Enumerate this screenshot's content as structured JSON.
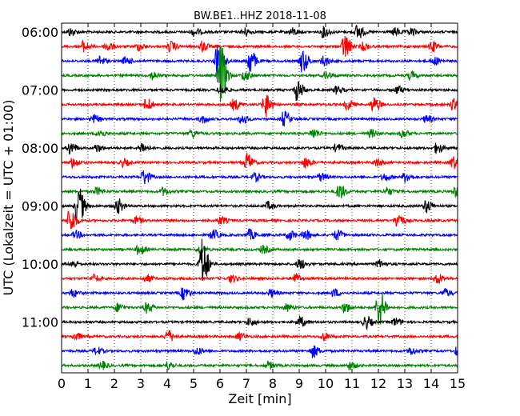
{
  "chart_data": {
    "type": "line",
    "title": "BW.BE1..HHZ 2018-11-08",
    "xlabel": "Zeit  [min]",
    "ylabel": "UTC (Lokalzeit = UTC + 01:00)",
    "xlim": [
      0,
      15
    ],
    "x_ticks": [
      "0",
      "1",
      "2",
      "3",
      "4",
      "5",
      "6",
      "7",
      "8",
      "9",
      "10",
      "11",
      "12",
      "13",
      "14",
      "15"
    ],
    "y_ticks": [
      "06:00",
      "07:00",
      "08:00",
      "09:00",
      "10:00",
      "11:00"
    ],
    "grid": "vertical dotted",
    "trace_colors": [
      "#000000",
      "#ff0000",
      "#0000ff",
      "#008000"
    ],
    "traces": [
      {
        "start": "06:00",
        "events": [
          [
            0.3,
            0.3
          ],
          [
            5.0,
            0.3
          ],
          [
            6.9,
            0.3
          ],
          [
            8.7,
            0.3
          ],
          [
            9.9,
            0.4
          ],
          [
            11.2,
            0.6
          ],
          [
            12.6,
            0.3
          ],
          [
            13.2,
            0.3
          ]
        ]
      },
      {
        "start": "06:15",
        "events": [
          [
            0.8,
            0.4
          ],
          [
            1.7,
            0.4
          ],
          [
            2.9,
            0.3
          ],
          [
            4.1,
            0.4
          ],
          [
            5.3,
            0.4
          ],
          [
            10.7,
            1.0
          ],
          [
            11.4,
            0.3
          ],
          [
            14.0,
            0.4
          ]
        ]
      },
      {
        "start": "06:30",
        "events": [
          [
            1.4,
            0.4
          ],
          [
            2.4,
            0.3
          ],
          [
            5.9,
            1.4
          ],
          [
            7.1,
            1.0
          ],
          [
            9.1,
            0.9
          ],
          [
            9.9,
            0.4
          ],
          [
            14.1,
            0.3
          ]
        ]
      },
      {
        "start": "06:45",
        "events": [
          [
            3.4,
            0.3
          ],
          [
            6.0,
            2.5
          ],
          [
            6.9,
            0.4
          ],
          [
            10.0,
            0.3
          ],
          [
            13.2,
            0.3
          ]
        ]
      },
      {
        "start": "07:00",
        "events": [
          [
            6.0,
            0.4
          ],
          [
            8.9,
            0.8
          ],
          [
            10.4,
            0.3
          ],
          [
            12.7,
            0.3
          ]
        ]
      },
      {
        "start": "07:15",
        "events": [
          [
            3.2,
            0.5
          ],
          [
            6.5,
            0.4
          ],
          [
            7.7,
            1.0
          ],
          [
            10.8,
            0.4
          ],
          [
            11.8,
            0.6
          ],
          [
            14.8,
            0.4
          ]
        ]
      },
      {
        "start": "07:30",
        "events": [
          [
            1.2,
            0.3
          ],
          [
            5.3,
            0.3
          ],
          [
            6.8,
            0.4
          ],
          [
            8.4,
            0.6
          ],
          [
            13.8,
            0.3
          ]
        ]
      },
      {
        "start": "07:45",
        "events": [
          [
            1.4,
            0.3
          ],
          [
            4.9,
            0.3
          ],
          [
            9.5,
            0.4
          ],
          [
            11.7,
            0.3
          ],
          [
            12.9,
            0.3
          ]
        ]
      },
      {
        "start": "08:00",
        "events": [
          [
            0.3,
            0.5
          ],
          [
            1.3,
            0.3
          ],
          [
            3.0,
            0.4
          ],
          [
            10.4,
            0.3
          ],
          [
            14.2,
            0.4
          ]
        ]
      },
      {
        "start": "08:15",
        "events": [
          [
            0.4,
            0.4
          ],
          [
            2.3,
            0.3
          ],
          [
            7.0,
            0.7
          ],
          [
            9.2,
            0.4
          ],
          [
            11.9,
            0.3
          ],
          [
            14.8,
            0.5
          ]
        ]
      },
      {
        "start": "08:30",
        "events": [
          [
            3.1,
            0.6
          ],
          [
            7.3,
            0.3
          ],
          [
            9.8,
            0.3
          ],
          [
            12.2,
            0.3
          ],
          [
            13.0,
            0.4
          ]
        ]
      },
      {
        "start": "08:45",
        "events": [
          [
            1.3,
            0.3
          ],
          [
            3.8,
            0.3
          ],
          [
            10.5,
            0.6
          ],
          [
            12.3,
            0.3
          ],
          [
            14.9,
            0.4
          ]
        ]
      },
      {
        "start": "09:00",
        "events": [
          [
            0.6,
            1.6
          ],
          [
            2.1,
            0.6
          ],
          [
            7.8,
            0.3
          ],
          [
            13.8,
            0.5
          ]
        ]
      },
      {
        "start": "09:15",
        "events": [
          [
            0.3,
            1.0
          ],
          [
            2.8,
            0.3
          ],
          [
            6.0,
            0.3
          ],
          [
            12.7,
            0.6
          ]
        ]
      },
      {
        "start": "09:30",
        "events": [
          [
            0.5,
            0.3
          ],
          [
            5.7,
            0.4
          ],
          [
            7.1,
            0.4
          ],
          [
            8.6,
            0.4
          ],
          [
            9.2,
            0.4
          ],
          [
            10.4,
            0.4
          ]
        ]
      },
      {
        "start": "09:45",
        "events": [
          [
            2.9,
            0.4
          ],
          [
            5.2,
            0.3
          ],
          [
            7.6,
            0.3
          ]
        ]
      },
      {
        "start": "10:00",
        "events": [
          [
            0.4,
            0.3
          ],
          [
            5.3,
            2.0
          ],
          [
            9.0,
            0.4
          ],
          [
            12.0,
            0.3
          ]
        ]
      },
      {
        "start": "10:15",
        "events": [
          [
            1.2,
            0.3
          ],
          [
            3.2,
            0.3
          ],
          [
            6.4,
            0.3
          ],
          [
            8.8,
            0.4
          ],
          [
            14.2,
            0.4
          ]
        ]
      },
      {
        "start": "10:30",
        "events": [
          [
            0.4,
            0.3
          ],
          [
            4.6,
            0.5
          ],
          [
            7.9,
            0.3
          ],
          [
            10.3,
            0.3
          ],
          [
            14.5,
            0.3
          ]
        ]
      },
      {
        "start": "10:45",
        "events": [
          [
            2.1,
            0.3
          ],
          [
            3.2,
            0.4
          ],
          [
            8.5,
            0.3
          ],
          [
            10.7,
            0.4
          ],
          [
            12.0,
            1.6
          ]
        ]
      },
      {
        "start": "11:00",
        "events": [
          [
            7.1,
            0.3
          ],
          [
            9.0,
            0.4
          ],
          [
            11.5,
            0.5
          ],
          [
            12.6,
            0.3
          ]
        ]
      },
      {
        "start": "11:15",
        "events": [
          [
            0.5,
            0.3
          ],
          [
            4.0,
            0.5
          ],
          [
            6.7,
            0.3
          ],
          [
            9.9,
            0.3
          ]
        ]
      },
      {
        "start": "11:30",
        "events": [
          [
            1.3,
            0.3
          ],
          [
            5.1,
            0.3
          ],
          [
            9.5,
            0.5
          ],
          [
            13.2,
            0.3
          ],
          [
            15.0,
            0.6
          ]
        ]
      },
      {
        "start": "11:45",
        "events": [
          [
            1.5,
            0.3
          ],
          [
            4.0,
            0.3
          ],
          [
            7.8,
            0.3
          ],
          [
            10.9,
            0.3
          ]
        ]
      }
    ]
  }
}
